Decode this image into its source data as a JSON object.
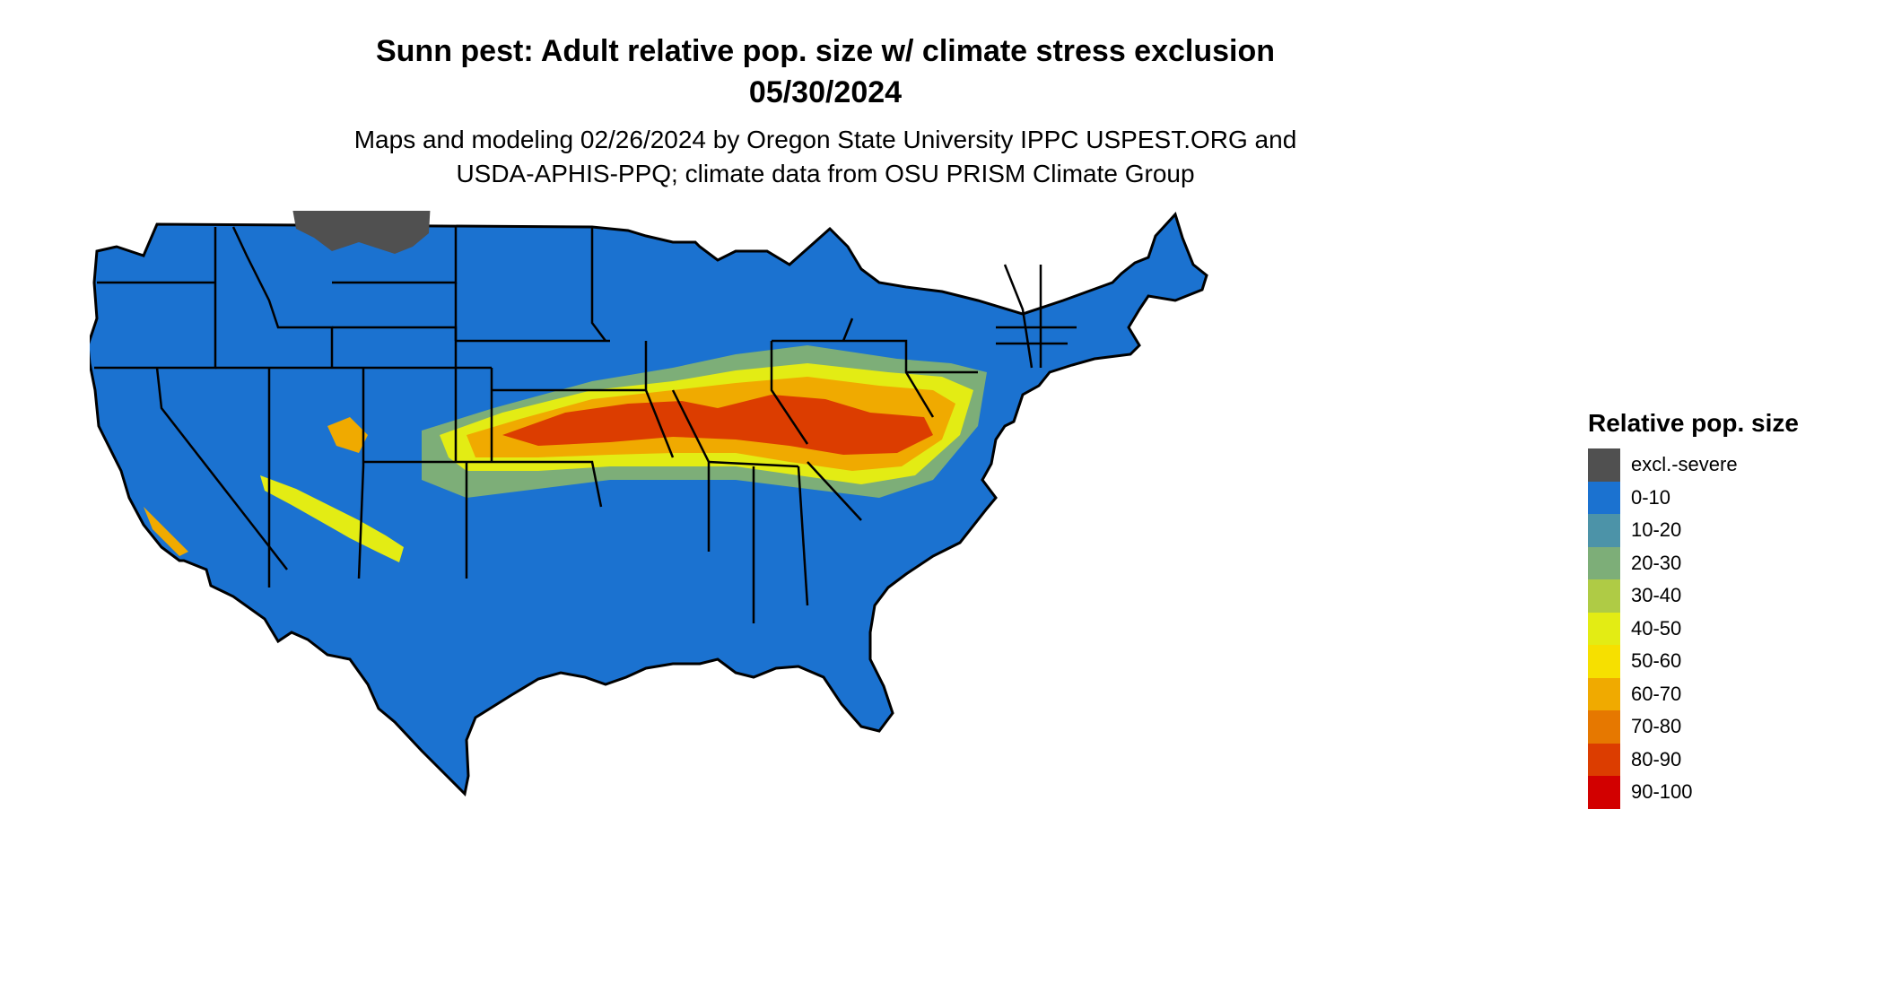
{
  "title": "Sunn pest: Adult relative pop. size w/ climate stress exclusion",
  "date": "05/30/2024",
  "subtitle_line1": "Maps and modeling 02/26/2024 by Oregon State University IPPC USPEST.ORG and",
  "subtitle_line2": "USDA-APHIS-PPQ; climate data from OSU PRISM Climate Group",
  "legend": {
    "title": "Relative pop. size",
    "items": [
      {
        "label": "excl.-severe",
        "color": "#505050"
      },
      {
        "label": "0-10",
        "color": "#1b72d0"
      },
      {
        "label": "10-20",
        "color": "#4c93a8"
      },
      {
        "label": "20-30",
        "color": "#7dae78"
      },
      {
        "label": "30-40",
        "color": "#afcb45"
      },
      {
        "label": "40-50",
        "color": "#e3ec14"
      },
      {
        "label": "50-60",
        "color": "#f6e000"
      },
      {
        "label": "60-70",
        "color": "#f0aa00"
      },
      {
        "label": "70-80",
        "color": "#e67800"
      },
      {
        "label": "80-90",
        "color": "#dc3d00"
      },
      {
        "label": "90-100",
        "color": "#d20000"
      }
    ]
  }
}
